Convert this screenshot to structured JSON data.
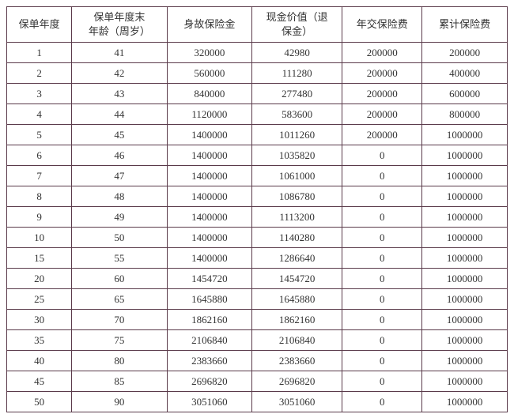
{
  "table": {
    "type": "table",
    "border_color": "#5a3a4a",
    "background_color": "#ffffff",
    "text_color": "#333333",
    "font_size_pt": 10,
    "font_family": "SimSun",
    "columns": [
      {
        "key": "policy_year",
        "label": "保单年度",
        "width_pct": 13,
        "align": "center"
      },
      {
        "key": "age_end",
        "label": "保单年度末\n年龄（周岁）",
        "width_pct": 19,
        "align": "center"
      },
      {
        "key": "death_benefit",
        "label": "身故保险金",
        "width_pct": 17,
        "align": "center"
      },
      {
        "key": "cash_value",
        "label": "现金价值（退\n保金）",
        "width_pct": 18,
        "align": "center"
      },
      {
        "key": "annual_premium",
        "label": "年交保险费",
        "width_pct": 16,
        "align": "center"
      },
      {
        "key": "cumulative_premium",
        "label": "累计保险费",
        "width_pct": 17,
        "align": "center"
      }
    ],
    "rows": [
      {
        "policy_year": "1",
        "age_end": "41",
        "death_benefit": "320000",
        "cash_value": "42980",
        "annual_premium": "200000",
        "cumulative_premium": "200000"
      },
      {
        "policy_year": "2",
        "age_end": "42",
        "death_benefit": "560000",
        "cash_value": "111280",
        "annual_premium": "200000",
        "cumulative_premium": "400000"
      },
      {
        "policy_year": "3",
        "age_end": "43",
        "death_benefit": "840000",
        "cash_value": "277480",
        "annual_premium": "200000",
        "cumulative_premium": "600000"
      },
      {
        "policy_year": "4",
        "age_end": "44",
        "death_benefit": "1120000",
        "cash_value": "583600",
        "annual_premium": "200000",
        "cumulative_premium": "800000"
      },
      {
        "policy_year": "5",
        "age_end": "45",
        "death_benefit": "1400000",
        "cash_value": "1011260",
        "annual_premium": "200000",
        "cumulative_premium": "1000000"
      },
      {
        "policy_year": "6",
        "age_end": "46",
        "death_benefit": "1400000",
        "cash_value": "1035820",
        "annual_premium": "0",
        "cumulative_premium": "1000000"
      },
      {
        "policy_year": "7",
        "age_end": "47",
        "death_benefit": "1400000",
        "cash_value": "1061000",
        "annual_premium": "0",
        "cumulative_premium": "1000000"
      },
      {
        "policy_year": "8",
        "age_end": "48",
        "death_benefit": "1400000",
        "cash_value": "1086780",
        "annual_premium": "0",
        "cumulative_premium": "1000000"
      },
      {
        "policy_year": "9",
        "age_end": "49",
        "death_benefit": "1400000",
        "cash_value": "1113200",
        "annual_premium": "0",
        "cumulative_premium": "1000000"
      },
      {
        "policy_year": "10",
        "age_end": "50",
        "death_benefit": "1400000",
        "cash_value": "1140280",
        "annual_premium": "0",
        "cumulative_premium": "1000000"
      },
      {
        "policy_year": "15",
        "age_end": "55",
        "death_benefit": "1400000",
        "cash_value": "1286640",
        "annual_premium": "0",
        "cumulative_premium": "1000000"
      },
      {
        "policy_year": "20",
        "age_end": "60",
        "death_benefit": "1454720",
        "cash_value": "1454720",
        "annual_premium": "0",
        "cumulative_premium": "1000000"
      },
      {
        "policy_year": "25",
        "age_end": "65",
        "death_benefit": "1645880",
        "cash_value": "1645880",
        "annual_premium": "0",
        "cumulative_premium": "1000000"
      },
      {
        "policy_year": "30",
        "age_end": "70",
        "death_benefit": "1862160",
        "cash_value": "1862160",
        "annual_premium": "0",
        "cumulative_premium": "1000000"
      },
      {
        "policy_year": "35",
        "age_end": "75",
        "death_benefit": "2106840",
        "cash_value": "2106840",
        "annual_premium": "0",
        "cumulative_premium": "1000000"
      },
      {
        "policy_year": "40",
        "age_end": "80",
        "death_benefit": "2383660",
        "cash_value": "2383660",
        "annual_premium": "0",
        "cumulative_premium": "1000000"
      },
      {
        "policy_year": "45",
        "age_end": "85",
        "death_benefit": "2696820",
        "cash_value": "2696820",
        "annual_premium": "0",
        "cumulative_premium": "1000000"
      },
      {
        "policy_year": "50",
        "age_end": "90",
        "death_benefit": "3051060",
        "cash_value": "3051060",
        "annual_premium": "0",
        "cumulative_premium": "1000000"
      }
    ]
  }
}
